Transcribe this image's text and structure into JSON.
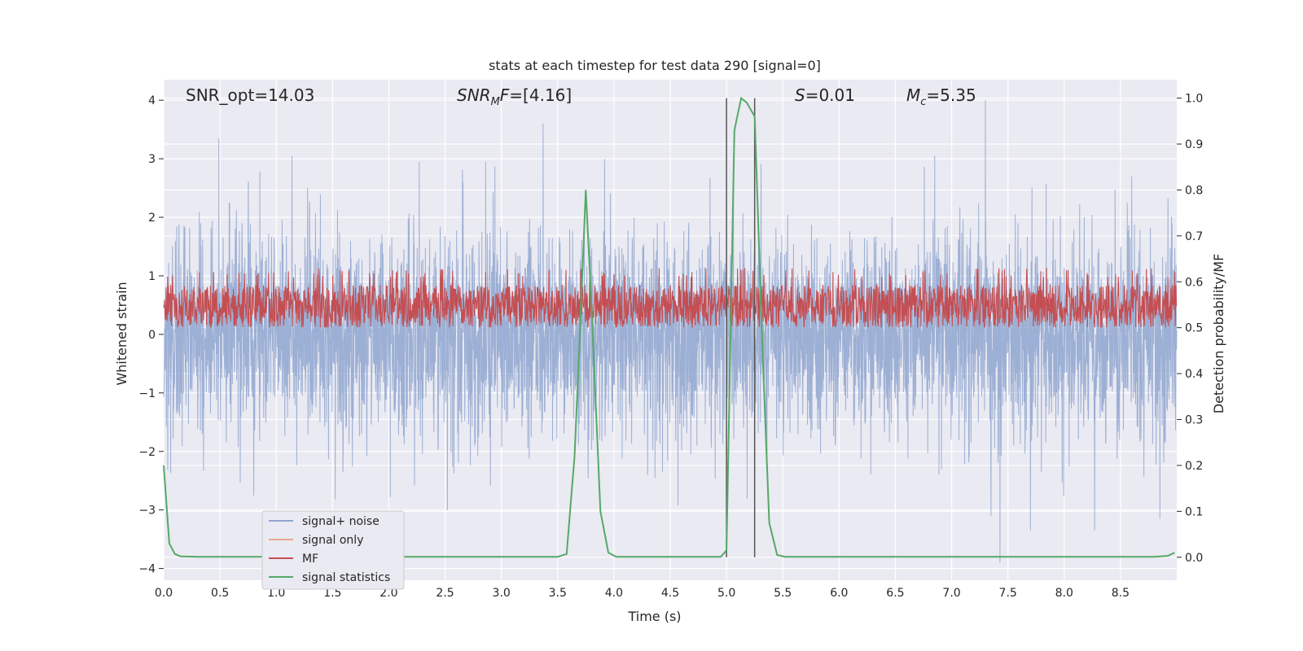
{
  "chart_data": {
    "type": "line",
    "title": "stats at each timestep for test data 290 [signal=0]",
    "xlabel": "Time (s)",
    "ylabel_left": "Whitened strain",
    "ylabel_right": "Detection probability/MF",
    "xlim": [
      0.0,
      9.0
    ],
    "ylim_left": [
      -4.2,
      4.35
    ],
    "ylim_right": [
      -0.05,
      1.04
    ],
    "x_ticks": [
      "0.0",
      "0.5",
      "1.0",
      "1.5",
      "2.0",
      "2.5",
      "3.0",
      "3.5",
      "4.0",
      "4.5",
      "5.0",
      "5.5",
      "6.0",
      "6.5",
      "7.0",
      "7.5",
      "8.0",
      "8.5"
    ],
    "y_left_ticks": [
      "4",
      "3",
      "2",
      "1",
      "0",
      "−1",
      "−2",
      "−3",
      "−4"
    ],
    "y_right_ticks": [
      "1.0",
      "0.9",
      "0.8",
      "0.7",
      "0.6",
      "0.5",
      "0.4",
      "0.3",
      "0.2",
      "0.1",
      "0.0"
    ],
    "annotations": {
      "snr_opt": "SNR_opt=14.03",
      "snr_mf": "=[4.16]",
      "s": "=0.01",
      "mc": "=5.35"
    },
    "colors": {
      "background": "#eaeaf2",
      "grid": "#ffffff",
      "noise": "#8ea5cf",
      "signal_only": "#e8a98c",
      "mf": "#c44e52",
      "stats": "#55a868",
      "vline": "#555555"
    },
    "vlines": [
      5.0,
      5.25
    ],
    "series": [
      {
        "name": "signal+ noise",
        "axis": "left",
        "sigma": 0.85,
        "min": -3.9,
        "max": 4.0,
        "peaks_high": [
          [
            0.49,
            3.35
          ],
          [
            1.14,
            3.05
          ],
          [
            3.37,
            3.6
          ],
          [
            7.3,
            4.0
          ],
          [
            2.27,
            2.95
          ],
          [
            2.86,
            2.95
          ],
          [
            6.85,
            3.05
          ],
          [
            8.6,
            2.7
          ]
        ],
        "peaks_low": [
          [
            7.43,
            -3.9
          ],
          [
            8.27,
            -3.35
          ],
          [
            8.85,
            -3.15
          ],
          [
            7.7,
            -3.35
          ],
          [
            2.52,
            -3.0
          ],
          [
            0.8,
            -2.75
          ],
          [
            7.35,
            -3.1
          ]
        ]
      },
      {
        "name": "signal only",
        "axis": "left",
        "values": []
      },
      {
        "name": "MF",
        "axis": "right",
        "band": [
          0.5,
          0.61
        ]
      },
      {
        "name": "signal statistics",
        "axis": "right",
        "x": [
          0.0,
          0.05,
          0.1,
          0.15,
          0.2,
          0.3,
          0.5,
          1.0,
          2.0,
          3.0,
          3.5,
          3.58,
          3.65,
          3.7,
          3.75,
          3.8,
          3.88,
          3.95,
          4.02,
          4.1,
          4.5,
          4.95,
          5.0,
          5.07,
          5.13,
          5.18,
          5.25,
          5.32,
          5.38,
          5.45,
          5.52,
          6.0,
          7.0,
          8.0,
          8.8,
          8.92,
          8.98
        ],
        "y": [
          0.2,
          0.03,
          0.007,
          0.002,
          0.0015,
          0.001,
          0.001,
          0.001,
          0.001,
          0.001,
          0.001,
          0.007,
          0.22,
          0.5,
          0.8,
          0.55,
          0.1,
          0.01,
          0.001,
          0.001,
          0.001,
          0.001,
          0.015,
          0.93,
          1.0,
          0.99,
          0.96,
          0.45,
          0.075,
          0.005,
          0.001,
          0.001,
          0.001,
          0.001,
          0.001,
          0.003,
          0.01
        ]
      }
    ],
    "legend": {
      "placement": "lower-left",
      "entries": [
        "signal+ noise",
        "signal only",
        "MF",
        "signal statistics"
      ]
    }
  }
}
